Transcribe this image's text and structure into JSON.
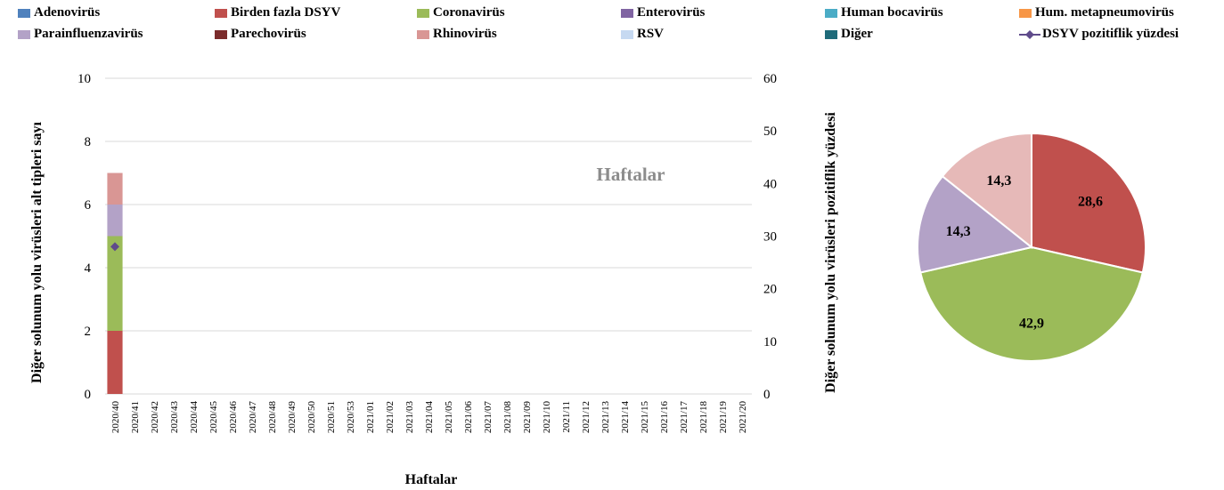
{
  "legend": [
    {
      "label": "Adenovirüs",
      "color": "#4F81BD",
      "kind": "box"
    },
    {
      "label": "Birden fazla DSYV",
      "color": "#C0504D",
      "kind": "box"
    },
    {
      "label": "Coronavirüs",
      "color": "#9BBB59",
      "kind": "box"
    },
    {
      "label": "Enterovirüs",
      "color": "#8064A2",
      "kind": "box"
    },
    {
      "label": "Human bocavirüs",
      "color": "#4BACC6",
      "kind": "box"
    },
    {
      "label": "Hum. metapneumovirüs",
      "color": "#F79646",
      "kind": "box"
    },
    {
      "label": "Parainfluenzavirüs",
      "color": "#B3A2C7",
      "kind": "box"
    },
    {
      "label": "Parechovirüs",
      "color": "#7B2C2C",
      "kind": "box"
    },
    {
      "label": "Rhinovirüs",
      "color": "#D99694",
      "kind": "box"
    },
    {
      "label": "RSV",
      "color": "#C6D9F1",
      "kind": "box"
    },
    {
      "label": "Diğer",
      "color": "#1F6B7A",
      "kind": "box"
    },
    {
      "label": "DSYV pozitiflik yüzdesi",
      "color": "#5F4B8B",
      "kind": "line-marker"
    }
  ],
  "chart_data": [
    {
      "type": "bar",
      "stacked": true,
      "categories": [
        "2020/40",
        "2020/41",
        "2020/42",
        "2020/43",
        "2020/44",
        "2020/45",
        "2020/46",
        "2020/47",
        "2020/48",
        "2020/49",
        "2020/50",
        "2020/51",
        "2020/53",
        "2021/01",
        "2021/02",
        "2021/03",
        "2021/04",
        "2021/05",
        "2021/06",
        "2021/07",
        "2021/08",
        "2021/09",
        "2021/10",
        "2021/11",
        "2021/12",
        "2021/13",
        "2021/14",
        "2021/15",
        "2021/16",
        "2021/17",
        "2021/18",
        "2021/19",
        "2021/20"
      ],
      "series": [
        {
          "name": "Birden fazla DSYV",
          "color": "#C0504D",
          "values": [
            2,
            0,
            0,
            0,
            0,
            0,
            0,
            0,
            0,
            0,
            0,
            0,
            0,
            0,
            0,
            0,
            0,
            0,
            0,
            0,
            0,
            0,
            0,
            0,
            0,
            0,
            0,
            0,
            0,
            0,
            0,
            0,
            0
          ]
        },
        {
          "name": "Coronavirüs",
          "color": "#9BBB59",
          "values": [
            3,
            0,
            0,
            0,
            0,
            0,
            0,
            0,
            0,
            0,
            0,
            0,
            0,
            0,
            0,
            0,
            0,
            0,
            0,
            0,
            0,
            0,
            0,
            0,
            0,
            0,
            0,
            0,
            0,
            0,
            0,
            0,
            0
          ]
        },
        {
          "name": "Parainfluenzavirüs",
          "color": "#B3A2C7",
          "values": [
            1,
            0,
            0,
            0,
            0,
            0,
            0,
            0,
            0,
            0,
            0,
            0,
            0,
            0,
            0,
            0,
            0,
            0,
            0,
            0,
            0,
            0,
            0,
            0,
            0,
            0,
            0,
            0,
            0,
            0,
            0,
            0,
            0
          ]
        },
        {
          "name": "Rhinovirüs",
          "color": "#D99694",
          "values": [
            1,
            0,
            0,
            0,
            0,
            0,
            0,
            0,
            0,
            0,
            0,
            0,
            0,
            0,
            0,
            0,
            0,
            0,
            0,
            0,
            0,
            0,
            0,
            0,
            0,
            0,
            0,
            0,
            0,
            0,
            0,
            0,
            0
          ]
        }
      ],
      "line_series": {
        "name": "DSYV pozitiflik yüzdesi",
        "color": "#5F4B8B",
        "axis": "right",
        "points": [
          {
            "x": "2020/40",
            "y": 28
          }
        ]
      },
      "ylim": [
        0,
        10
      ],
      "yticks": [
        0,
        2,
        4,
        6,
        8,
        10
      ],
      "y2lim": [
        0,
        60
      ],
      "y2ticks": [
        0,
        10,
        20,
        30,
        40,
        50,
        60
      ],
      "ylabel": "Diğer solunum yolu virüsleri alt tipleri sayı",
      "y2label": "Diğer solunum yolu virüsleri pozitiflik yüzdesi",
      "xlabel": "Haftalar",
      "watermark": "Haftalar",
      "grid": true
    },
    {
      "type": "pie",
      "slices": [
        {
          "label": "28,6",
          "value": 28.6,
          "color": "#C0504D",
          "label_color": "#000000"
        },
        {
          "label": "42,9",
          "value": 42.9,
          "color": "#9BBB59",
          "label_color": "#000000"
        },
        {
          "label": "14,3",
          "value": 14.3,
          "color": "#B3A2C7",
          "label_color": "#000000"
        },
        {
          "label": "14,3",
          "value": 14.3,
          "color": "#E6B9B8",
          "label_color": "#000000"
        }
      ]
    }
  ]
}
